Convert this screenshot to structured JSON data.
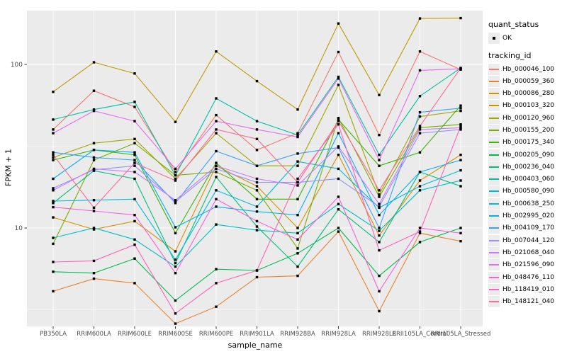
{
  "chart_data": {
    "type": "line",
    "title": "",
    "xlabel": "sample_name",
    "ylabel": "FPKM + 1",
    "y_scale": "log10",
    "y_tick_labels": [
      "100",
      "10"
    ],
    "y_tick_values": [
      100,
      10
    ],
    "y_minor_values": [
      31.623,
      3.1623
    ],
    "ylim": [
      2.4,
      215
    ],
    "grid": true,
    "legend_position": "right",
    "panel_bg": "#EBEBEB",
    "grid_color": "#FFFFFF",
    "point_color": "#000000",
    "tick_color": "#333333",
    "tick_label_color": "#4D4D4D",
    "categories": [
      "PB350LA",
      "RRIM600LA",
      "RRIM600LE",
      "RRIM600SE",
      "RRIM600PE",
      "RRIM901LA",
      "RRIM928BA",
      "RRIM928LA",
      "RRIM928LE",
      "RRII105LA_Control",
      "RRII105LA_Stressed"
    ],
    "series": [
      {
        "name": "Hb_000046_100",
        "color": "#F8766D",
        "values": [
          40,
          69,
          55,
          22,
          49,
          30,
          38,
          119,
          37,
          120,
          93
        ]
      },
      {
        "name": "Hb_000059_360",
        "color": "#EA8331",
        "values": [
          4.1,
          4.9,
          4.6,
          2.6,
          3.3,
          5.0,
          5.1,
          9.5,
          3.1,
          9.3,
          8.3
        ]
      },
      {
        "name": "Hb_000086_280",
        "color": "#D89000",
        "values": [
          11.6,
          9.8,
          11,
          7.2,
          24,
          18,
          10,
          28,
          9.0,
          19.5,
          28
        ]
      },
      {
        "name": "Hb_000103_320",
        "color": "#C09B00",
        "values": [
          68,
          103,
          88,
          44.5,
          120,
          79,
          53,
          178,
          65,
          191,
          192
        ]
      },
      {
        "name": "Hb_000120_960",
        "color": "#A3A500",
        "values": [
          27,
          33,
          35,
          20,
          38,
          24,
          24,
          75,
          16,
          48,
          52
        ]
      },
      {
        "name": "Hb_000155_200",
        "color": "#7CAE00",
        "values": [
          8.0,
          26,
          33,
          21,
          22,
          17,
          7.5,
          47,
          15.5,
          41,
          43
        ]
      },
      {
        "name": "Hb_000175_340",
        "color": "#39B600",
        "values": [
          26,
          30,
          28,
          9.3,
          25,
          15,
          15,
          46,
          24,
          29,
          56
        ]
      },
      {
        "name": "Hb_000205_090",
        "color": "#00BB4E",
        "values": [
          5.4,
          5.3,
          6.5,
          3.6,
          5.6,
          5.5,
          7.0,
          10,
          5.1,
          8.2,
          10
        ]
      },
      {
        "name": "Hb_000236_040",
        "color": "#00BF7D",
        "values": [
          14.2,
          22.4,
          20,
          6.1,
          20.5,
          10.2,
          5.8,
          13,
          8.2,
          22,
          18
        ]
      },
      {
        "name": "Hb_000403_060",
        "color": "#00C1A3",
        "values": [
          46,
          53,
          59,
          21,
          62,
          45,
          37,
          84,
          28,
          64,
          95
        ]
      },
      {
        "name": "Hb_000580_090",
        "color": "#00BFC4",
        "values": [
          8.7,
          10,
          8.5,
          5.8,
          10.5,
          9.7,
          9.3,
          14,
          9.6,
          17,
          19.5
        ]
      },
      {
        "name": "Hb_000638_250",
        "color": "#00BAE0",
        "values": [
          14.6,
          14.8,
          15,
          6.4,
          17,
          13.5,
          25.5,
          23,
          13.3,
          18,
          22.5
        ]
      },
      {
        "name": "Hb_002995_020",
        "color": "#00B0F6",
        "values": [
          20,
          30,
          29,
          10.1,
          13.5,
          12.6,
          12,
          38,
          12,
          22,
          26
        ]
      },
      {
        "name": "Hb_004109_170",
        "color": "#35A2FF",
        "values": [
          29,
          27,
          26,
          14.2,
          29.5,
          24,
          28.5,
          31,
          10,
          51,
          54
        ]
      },
      {
        "name": "Hb_007044_120",
        "color": "#9590FF",
        "values": [
          17.5,
          22.7,
          24,
          14.5,
          23,
          19,
          19,
          20,
          13.5,
          38,
          40
        ]
      },
      {
        "name": "Hb_021068_040",
        "color": "#C77CFF",
        "values": [
          17,
          23,
          22,
          14.8,
          24,
          20,
          18.2,
          31.5,
          14,
          40,
          41
        ]
      },
      {
        "name": "Hb_021596_090",
        "color": "#E76BF3",
        "values": [
          38,
          52,
          45,
          23,
          45,
          40,
          36,
          82,
          26,
          92,
          94
        ]
      },
      {
        "name": "Hb_048476_110",
        "color": "#FA62DB",
        "values": [
          13.4,
          12.7,
          12,
          5.3,
          15,
          11,
          8.5,
          15.5,
          4.1,
          10,
          9.3
        ]
      },
      {
        "name": "Hb_118419_010",
        "color": "#FF62BC",
        "values": [
          6.2,
          6.3,
          7.9,
          3.0,
          4.6,
          5.5,
          20,
          43,
          7.3,
          9.5,
          42
        ]
      },
      {
        "name": "Hb_148121_040",
        "color": "#FF6A98",
        "values": [
          28,
          13.3,
          25,
          19.5,
          40,
          35,
          19,
          45,
          17,
          42,
          95
        ]
      }
    ]
  },
  "legend": {
    "quant_status_title": "quant_status",
    "quant_status_items": [
      "OK"
    ],
    "tracking_id_title": "tracking_id"
  }
}
